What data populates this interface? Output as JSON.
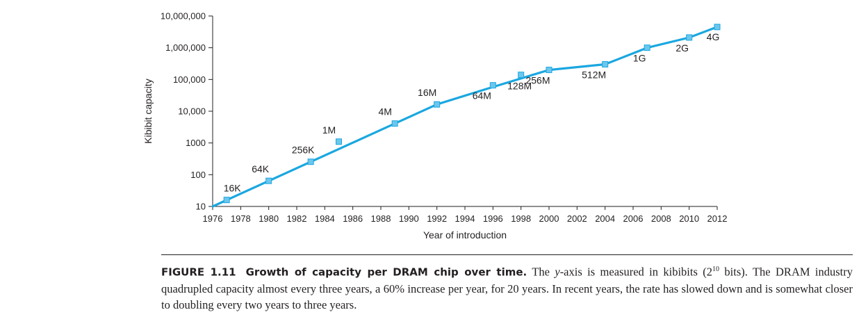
{
  "chart_data": {
    "type": "line",
    "xlabel": "Year of introduction",
    "ylabel": "Kibibit capacity",
    "x_ticks": [
      1976,
      1978,
      1980,
      1982,
      1984,
      1986,
      1988,
      1990,
      1992,
      1994,
      1996,
      1998,
      2000,
      2002,
      2004,
      2006,
      2008,
      2010,
      2012
    ],
    "y_ticks": [
      10,
      100,
      1000,
      10000,
      100000,
      1000000,
      10000000
    ],
    "y_tick_labels": [
      "10",
      "100",
      "1000",
      "10,000",
      "100,000",
      "1,000,000",
      "10,000,000"
    ],
    "xlim": [
      1976,
      2012
    ],
    "ylim": [
      10,
      10000000
    ],
    "y_scale": "log",
    "grid": false,
    "line_color": "#1aa7e0",
    "marker_color": "#6dc6ec",
    "line_points": [
      {
        "x": 1976,
        "y": 10
      },
      {
        "x": 1989,
        "y": 4096
      },
      {
        "x": 1992,
        "y": 16384
      },
      {
        "x": 1996,
        "y": 58000
      },
      {
        "x": 2000,
        "y": 200000
      },
      {
        "x": 2004,
        "y": 300000
      },
      {
        "x": 2007,
        "y": 1000000
      },
      {
        "x": 2010,
        "y": 2100000
      },
      {
        "x": 2012,
        "y": 4500000
      }
    ],
    "points": [
      {
        "x": 1977,
        "y": 16,
        "label": "16K"
      },
      {
        "x": 1980,
        "y": 64,
        "label": "64K"
      },
      {
        "x": 1983,
        "y": 256,
        "label": "256K"
      },
      {
        "x": 1985,
        "y": 1100,
        "label": "1M"
      },
      {
        "x": 1989,
        "y": 4096,
        "label": "4M"
      },
      {
        "x": 1992,
        "y": 16384,
        "label": "16M"
      },
      {
        "x": 1996,
        "y": 65536,
        "label": "64M"
      },
      {
        "x": 1998,
        "y": 140000,
        "label": "128M"
      },
      {
        "x": 2000,
        "y": 200000,
        "label": "256M"
      },
      {
        "x": 2004,
        "y": 300000,
        "label": "512M"
      },
      {
        "x": 2007,
        "y": 1000000,
        "label": "1G"
      },
      {
        "x": 2010,
        "y": 2100000,
        "label": "2G"
      },
      {
        "x": 2012,
        "y": 4500000,
        "label": "4G"
      }
    ]
  },
  "caption": {
    "figure_label": "FIGURE 1.11",
    "title": "Growth of capacity per DRAM chip over time.",
    "text_part1": "The ",
    "y_axis_italic": "y",
    "text_part2": "-axis is measured in kibibits (2",
    "superscript": "10",
    "text_part3": " bits). The DRAM industry quadrupled capacity almost every three years, a 60% increase per year, for 20 years. In recent years, the rate has slowed down and is somewhat closer to doubling every two years to three years."
  }
}
